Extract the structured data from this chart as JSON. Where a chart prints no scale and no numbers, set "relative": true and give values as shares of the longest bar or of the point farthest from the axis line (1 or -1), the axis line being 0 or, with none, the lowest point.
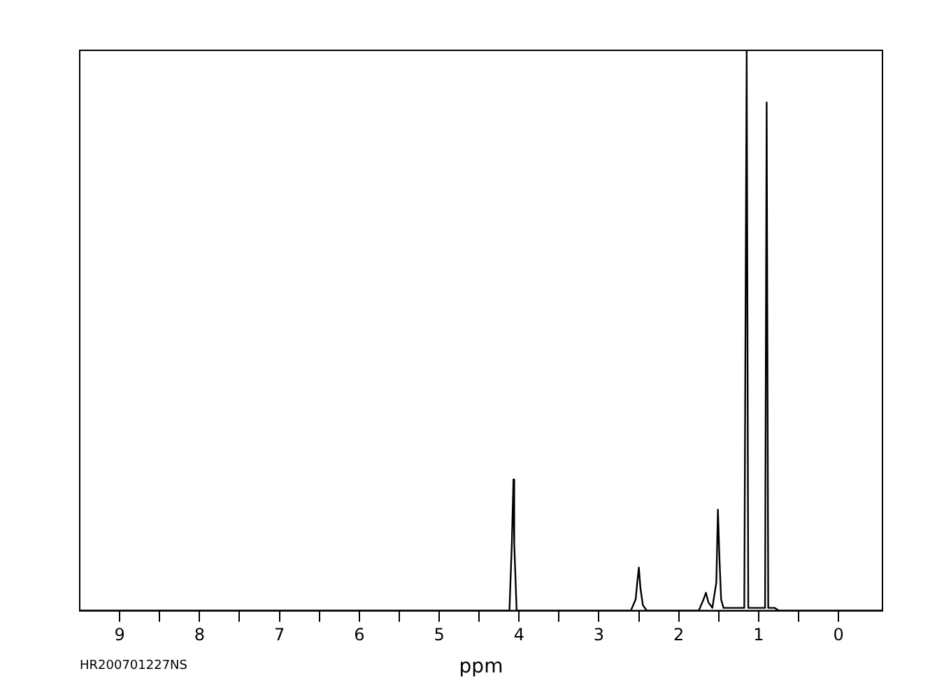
{
  "chart_data": {
    "type": "line",
    "relative": true,
    "xlabel": "ppm",
    "annotations": [
      "HR200701227NS"
    ],
    "xlim": [
      9.5,
      -0.55
    ],
    "xticks": [
      9,
      {
        "value": 8.5,
        "label": null
      },
      8,
      {
        "value": 7.5,
        "label": null
      },
      7,
      {
        "value": 6.5,
        "label": null
      },
      6,
      {
        "value": 5.5,
        "label": null
      },
      5,
      {
        "value": 4.5,
        "label": null
      },
      4,
      {
        "value": 3.5,
        "label": null
      },
      3,
      {
        "value": 2.5,
        "label": null
      },
      2,
      {
        "value": 1.5,
        "label": null
      },
      1,
      {
        "value": 0.5,
        "label": null
      },
      0
    ],
    "grid": false,
    "legend": false,
    "marker": "none",
    "line_style": "solid",
    "series": [
      {
        "color": "#000000",
        "x": [
          9.5,
          4.5,
          4.12,
          4.09,
          4.07,
          4.06,
          4.03,
          2.6,
          2.54,
          2.52,
          2.5,
          2.48,
          2.45,
          2.4,
          1.75,
          1.69,
          1.66,
          1.63,
          1.58,
          1.53,
          1.51,
          1.49,
          1.47,
          1.44,
          1.18,
          1.15,
          1.13,
          1.05,
          0.92,
          0.9,
          0.88,
          0.8,
          0.75,
          -0.55
        ],
        "values": [
          0,
          0,
          0,
          0.12,
          0.234,
          0.12,
          0,
          0,
          0.02,
          0.05,
          0.077,
          0.04,
          0.01,
          0,
          0,
          0.02,
          0.032,
          0.015,
          0.005,
          0.05,
          0.18,
          0.09,
          0.02,
          0.005,
          0.005,
          1,
          0.005,
          0.005,
          0.005,
          0.907,
          0.005,
          0.005,
          0,
          0
        ]
      }
    ]
  }
}
